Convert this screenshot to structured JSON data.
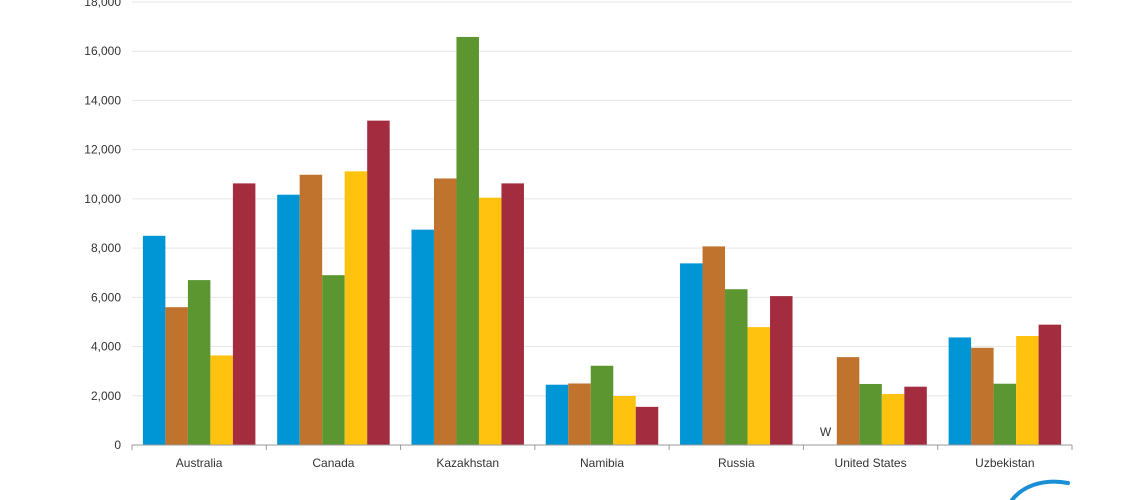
{
  "chart_data": {
    "type": "bar",
    "categories": [
      "Australia",
      "Canada",
      "Kazakhstan",
      "Namibia",
      "Russia",
      "United States",
      "Uzbekistan"
    ],
    "series": [
      {
        "color": "#0096d6",
        "values": [
          8500,
          10170,
          8750,
          2450,
          7380,
          null,
          4370
        ]
      },
      {
        "color": "#c0732c",
        "values": [
          5600,
          10980,
          10830,
          2500,
          8070,
          3570,
          3950
        ]
      },
      {
        "color": "#5b9631",
        "values": [
          6700,
          6900,
          16580,
          3220,
          6330,
          2480,
          2490
        ]
      },
      {
        "color": "#ffc20e",
        "values": [
          3640,
          11120,
          10050,
          1990,
          4790,
          2070,
          4430
        ]
      },
      {
        "color": "#a32d3f",
        "values": [
          10630,
          13180,
          10630,
          1550,
          6050,
          2370,
          4890
        ]
      }
    ],
    "withheld_label": "W",
    "ylim": [
      0,
      18000
    ],
    "yticks": [
      "0",
      "2,000",
      "4,000",
      "6,000",
      "8,000",
      "10,000",
      "12,000",
      "14,000",
      "16,000",
      "18,000"
    ],
    "grid": true,
    "gridline_color": "#e6e6e6",
    "axis_color": "#999999",
    "title": "",
    "xlabel": "",
    "ylabel": ""
  },
  "decoration": {
    "logo_icon": "swoosh-logo-icon",
    "logo_color": "#1a8fd6"
  }
}
